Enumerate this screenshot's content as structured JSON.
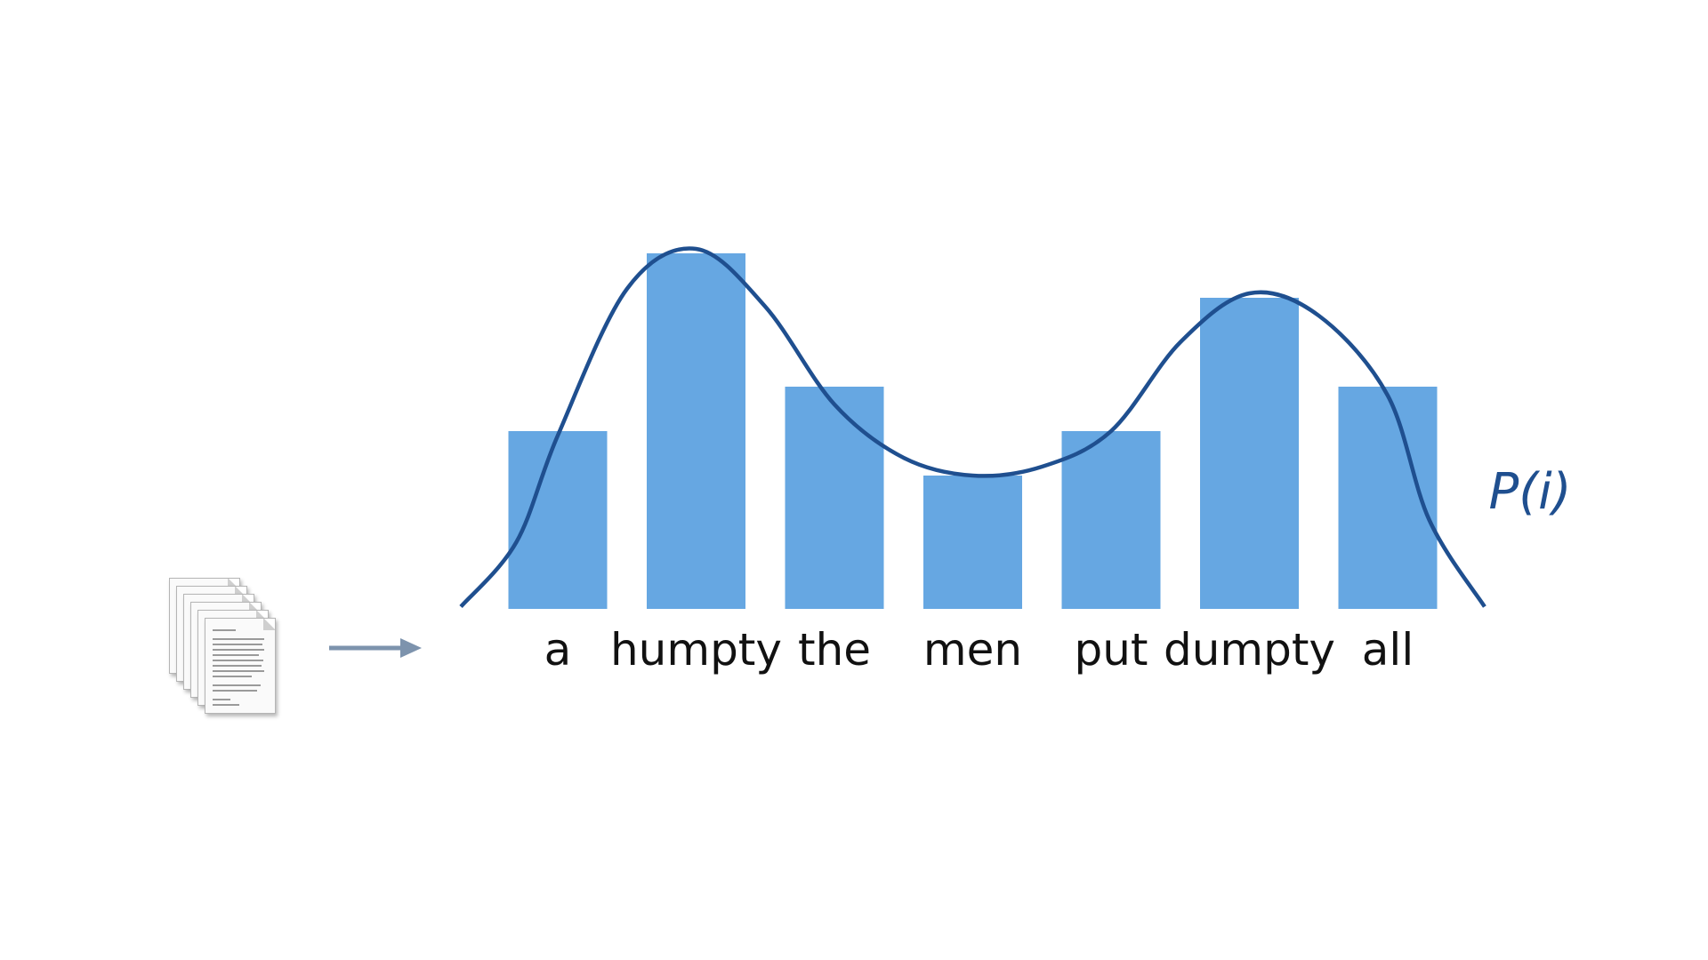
{
  "colors": {
    "bar": "#66a7e2",
    "curve": "#1f4f8f",
    "arrow": "#7d93ad",
    "label": "#111111"
  },
  "icons": {
    "documents": "document-stack-icon",
    "arrow": "arrow-right-icon"
  },
  "chart_data": {
    "type": "bar",
    "categories": [
      "a",
      "humpty",
      "the",
      "men",
      "put",
      "dumpty",
      "all"
    ],
    "values": [
      4,
      8,
      5,
      3,
      4,
      7,
      5
    ],
    "ylim": [
      0,
      8.5
    ],
    "grid": false,
    "axes_visible": false,
    "overlay": {
      "type": "line",
      "label": "P(i)",
      "shape": "smooth bimodal density curve",
      "x": [
        -0.7,
        -0.3,
        0,
        0.5,
        1,
        1.5,
        2,
        2.5,
        3,
        3.5,
        4,
        4.5,
        5,
        5.5,
        6,
        6.3,
        6.7
      ],
      "y": [
        0.05,
        1.5,
        3.9,
        7.2,
        8.1,
        6.8,
        4.6,
        3.4,
        3.0,
        3.2,
        4.0,
        6.0,
        7.1,
        6.6,
        4.8,
        2.0,
        0.05
      ]
    }
  }
}
